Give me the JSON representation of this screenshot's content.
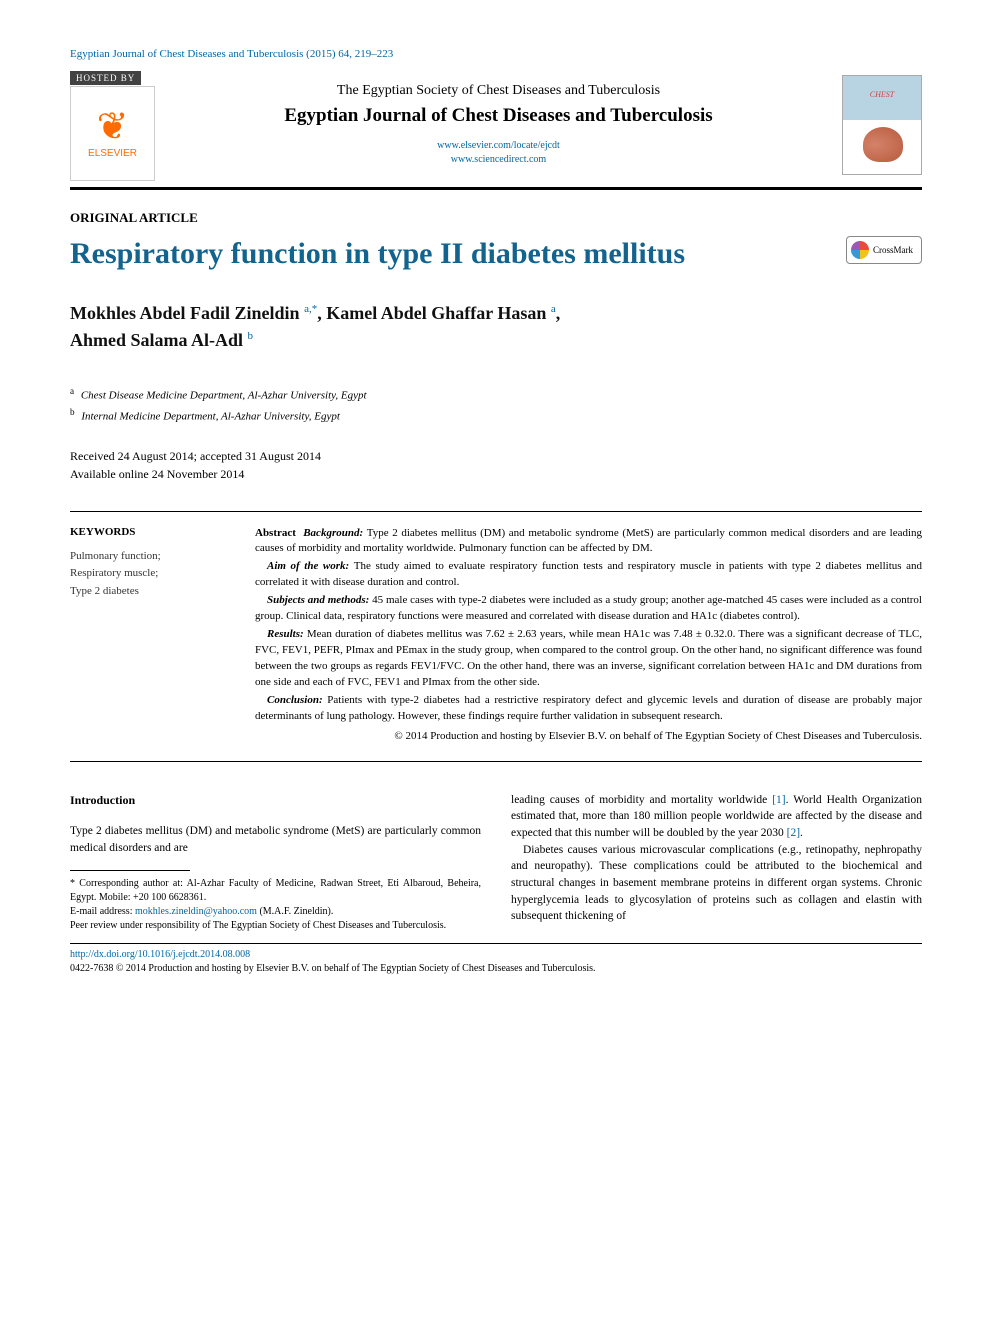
{
  "header": {
    "citation": "Egyptian Journal of Chest Diseases and Tuberculosis (2015) 64, 219–223",
    "hosted_by_label": "HOSTED BY",
    "publisher_name": "ELSEVIER",
    "society": "The Egyptian Society of Chest Diseases and Tuberculosis",
    "journal": "Egyptian Journal of Chest Diseases and Tuberculosis",
    "link1": "www.elsevier.com/locate/ejcdt",
    "link2": "www.sciencedirect.com"
  },
  "article": {
    "type": "ORIGINAL ARTICLE",
    "title": "Respiratory function in type II diabetes mellitus",
    "crossmark_label": "CrossMark"
  },
  "authors": {
    "a1_name": "Mokhles Abdel Fadil Zineldin ",
    "a1_sup": "a,*",
    "sep1": ", ",
    "a2_name": "Kamel Abdel Ghaffar Hasan ",
    "a2_sup": "a",
    "sep2": ", ",
    "a3_name": "Ahmed Salama Al-Adl ",
    "a3_sup": "b"
  },
  "affiliations": {
    "a_sup": "a",
    "a_text": " Chest Disease Medicine Department, Al-Azhar University, Egypt",
    "b_sup": "b",
    "b_text": " Internal Medicine Department, Al-Azhar University, Egypt"
  },
  "dates": {
    "received_accepted": "Received 24 August 2014; accepted 31 August 2014",
    "online": "Available online 24 November 2014"
  },
  "keywords": {
    "heading": "KEYWORDS",
    "items": "Pulmonary function;\nRespiratory muscle;\nType 2 diabetes"
  },
  "abstract": {
    "lead": "Abstract ",
    "bg_head": "Background: ",
    "bg_text": "Type 2 diabetes mellitus (DM) and metabolic syndrome (MetS) are particularly common medical disorders and are leading causes of morbidity and mortality worldwide. Pulmonary function can be affected by DM.",
    "aim_head": "Aim of the work: ",
    "aim_text": "The study aimed to evaluate respiratory function tests and respiratory muscle in patients with type 2 diabetes mellitus and correlated it with disease duration and control.",
    "sub_head": "Subjects and methods: ",
    "sub_text": "45 male cases with type-2 diabetes were included as a study group; another age-matched 45 cases were included as a control group. Clinical data, respiratory functions were measured and correlated with disease duration and HA1c (diabetes control).",
    "res_head": "Results: ",
    "res_text": "Mean duration of diabetes mellitus was 7.62 ± 2.63 years, while mean HA1c was 7.48 ± 0.32.0. There was a significant decrease of TLC, FVC, FEV1, PEFR, PImax and PEmax in the study group, when compared to the control group. On the other hand, no significant difference was found between the two groups as regards FEV1/FVC. On the other hand, there was an inverse, significant correlation between HA1c and DM durations from one side and each of FVC, FEV1 and PImax from the other side.",
    "con_head": "Conclusion: ",
    "con_text": "Patients with type-2 diabetes had a restrictive respiratory defect and glycemic levels and duration of disease are probably major determinants of lung pathology. However, these findings require further validation in subsequent research.",
    "copyright": "© 2014 Production and hosting by Elsevier B.V. on behalf of The Egyptian Society of Chest Diseases and Tuberculosis."
  },
  "intro": {
    "heading": "Introduction",
    "p1": "Type 2 diabetes mellitus (DM) and metabolic syndrome (MetS) are particularly common medical disorders and are",
    "p2a": "leading causes of morbidity and mortality worldwide ",
    "p2_ref1": "[1]",
    "p2b": ". World Health Organization estimated that, more than 180 million people worldwide are affected by the disease and expected that this number will be doubled by the year 2030 ",
    "p2_ref2": "[2]",
    "p2c": ".",
    "p3": "Diabetes causes various microvascular complications (e.g., retinopathy, nephropathy and neuropathy). These complications could be attributed to the biochemical and structural changes in basement membrane proteins in different organ systems. Chronic hyperglycemia leads to glycosylation of proteins such as collagen and elastin with subsequent thickening of"
  },
  "footnotes": {
    "corr": "* Corresponding author at: Al-Azhar Faculty of Medicine, Radwan Street, Eti Albaroud, Beheira, Egypt. Mobile: +20 100 6628361.",
    "email_label": "E-mail address: ",
    "email": "mokhles.zineldin@yahoo.com",
    "email_tail": " (M.A.F. Zineldin).",
    "peer": "Peer review under responsibility of The Egyptian Society of Chest Diseases and Tuberculosis."
  },
  "footer": {
    "doi": "http://dx.doi.org/10.1016/j.ejcdt.2014.08.008",
    "issn_line": "0422-7638 © 2014 Production and hosting by Elsevier B.V. on behalf of The Egyptian Society of Chest Diseases and Tuberculosis."
  },
  "colors": {
    "link": "#0066a4",
    "title": "#13638f",
    "elsevier_orange": "#ff6b00"
  }
}
